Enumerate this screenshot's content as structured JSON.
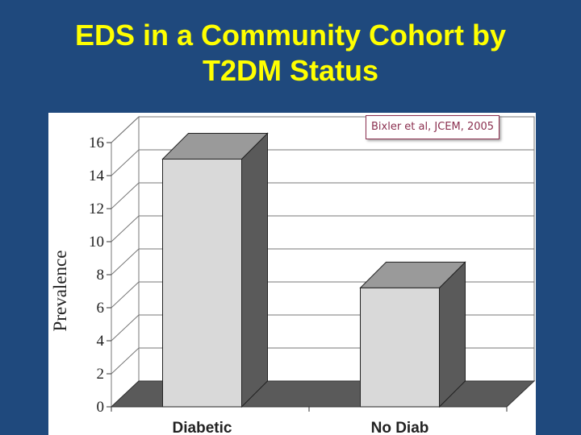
{
  "slide": {
    "title_line1": "EDS in a Community Cohort by",
    "title_line2": "T2DM Status",
    "citation": "Bixler et al, JCEM, 2005"
  },
  "colors": {
    "background": "#1f497d",
    "title": "#ffff00",
    "bar_front": "#d9d9d9",
    "bar_side": "#5a5a5a",
    "bar_top": "#9a9a9a",
    "floor": "#5a5a5a",
    "citation": "#8b2f4f"
  },
  "chart_data": {
    "type": "bar",
    "style": "3d",
    "categories": [
      "Diabetic",
      "No Diab"
    ],
    "values": [
      15,
      7.2
    ],
    "ylabel": "Prevalence",
    "xlabel": "",
    "ylim": [
      0,
      16
    ],
    "yticks": [
      "0",
      "2",
      "4",
      "6",
      "8",
      "10",
      "12",
      "14",
      "16"
    ],
    "grid": true
  }
}
